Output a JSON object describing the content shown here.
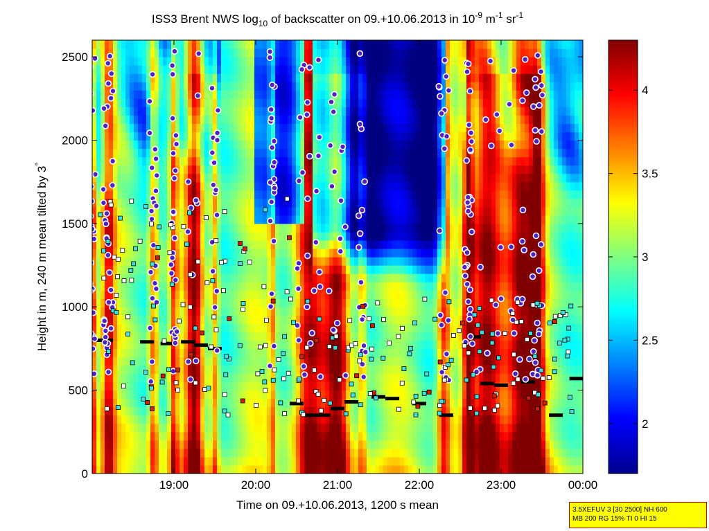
{
  "chart_data": {
    "type": "heatmap",
    "title": {
      "prefix": "ISS3 Brent NWS log",
      "sub": "10",
      "middle": " of backscatter on 09.+10.06.2013 in 10",
      "exp1": "-9",
      "unit_m": " m",
      "exp2": "-1",
      "unit_sr": " sr",
      "exp3": "-1"
    },
    "xlabel": "Time on 09.+10.06.2013, 1200 s mean",
    "ylabel_prefix": "Height in m, 240 m mean tilted by 3",
    "ylabel_suffix": "°",
    "x_ticks": [
      "19:00",
      "20:00",
      "21:00",
      "22:00",
      "23:00",
      "00:00"
    ],
    "y_ticks": [
      "0",
      "500",
      "1000",
      "1500",
      "2000",
      "2500"
    ],
    "xlim_hours": [
      18.0,
      24.0
    ],
    "ylim": [
      0,
      2600
    ],
    "colorbar": {
      "ticks": [
        "2",
        "2.5",
        "3",
        "3.5",
        "4"
      ],
      "range": [
        1.7,
        4.3
      ],
      "colormap": "jet"
    },
    "cloud_base_layers": [
      {
        "t": 18.05,
        "h": 800
      },
      {
        "t": 18.17,
        "h": 800
      },
      {
        "t": 18.67,
        "h": 790
      },
      {
        "t": 18.92,
        "h": 780
      },
      {
        "t": 19.17,
        "h": 790
      },
      {
        "t": 19.33,
        "h": 770
      },
      {
        "t": 19.5,
        "h": 750
      },
      {
        "t": 20.5,
        "h": 420
      },
      {
        "t": 20.67,
        "h": 350
      },
      {
        "t": 20.83,
        "h": 350
      },
      {
        "t": 21.0,
        "h": 390
      },
      {
        "t": 21.17,
        "h": 430
      },
      {
        "t": 21.5,
        "h": 460
      },
      {
        "t": 21.67,
        "h": 450
      },
      {
        "t": 22.0,
        "h": 420
      },
      {
        "t": 22.33,
        "h": 350
      },
      {
        "t": 22.67,
        "h": 820
      },
      {
        "t": 22.83,
        "h": 540
      },
      {
        "t": 23.0,
        "h": 530
      },
      {
        "t": 23.33,
        "h": 550
      },
      {
        "t": 23.67,
        "h": 350
      },
      {
        "t": 23.92,
        "h": 570
      }
    ],
    "info_box_lines": [
      "3.5XEFUV 3 [30 2500] NH 600",
      "MB 200 RG 15% TI 0 HI 15"
    ]
  }
}
